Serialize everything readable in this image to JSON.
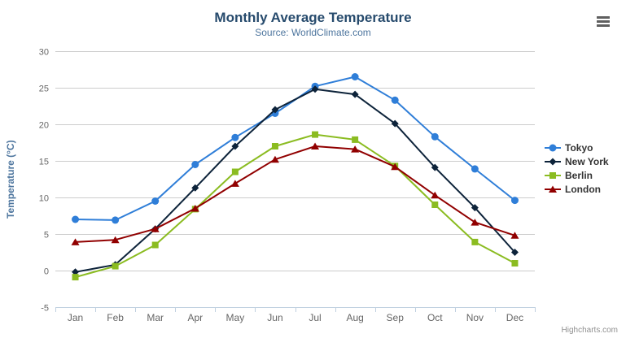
{
  "header": {
    "title": "Monthly Average Temperature",
    "subtitle": "Source: WorldClimate.com"
  },
  "toolbar": {
    "context_menu_icon": "hamburger-icon"
  },
  "chart_data": {
    "type": "line",
    "categories": [
      "Jan",
      "Feb",
      "Mar",
      "Apr",
      "May",
      "Jun",
      "Jul",
      "Aug",
      "Sep",
      "Oct",
      "Nov",
      "Dec"
    ],
    "series": [
      {
        "name": "Tokyo",
        "color": "#2f7ed8",
        "marker": "circle",
        "values": [
          7.0,
          6.9,
          9.5,
          14.5,
          18.2,
          21.5,
          25.2,
          26.5,
          23.3,
          18.3,
          13.9,
          9.6
        ]
      },
      {
        "name": "New York",
        "color": "#0d233a",
        "marker": "diamond",
        "values": [
          -0.2,
          0.8,
          5.7,
          11.3,
          17.0,
          22.0,
          24.8,
          24.1,
          20.1,
          14.1,
          8.6,
          2.5
        ]
      },
      {
        "name": "Berlin",
        "color": "#8bbc21",
        "marker": "square",
        "values": [
          -0.9,
          0.6,
          3.5,
          8.4,
          13.5,
          17.0,
          18.6,
          17.9,
          14.3,
          9.0,
          3.9,
          1.0
        ]
      },
      {
        "name": "London",
        "color": "#910000",
        "marker": "triangle",
        "values": [
          3.9,
          4.2,
          5.7,
          8.5,
          11.9,
          15.2,
          17.0,
          16.6,
          14.2,
          10.3,
          6.6,
          4.8
        ]
      }
    ],
    "title": "Monthly Average Temperature",
    "subtitle": "Source: WorldClimate.com",
    "xlabel": "",
    "ylabel": "Temperature (°C)",
    "ylim": [
      -5,
      30
    ],
    "ytick_step": 5,
    "grid": true,
    "legend_position": "right"
  },
  "style_colors": {
    "title": "#274b6d",
    "subtitle": "#4d759e",
    "axis_title": "#4d759e",
    "tick_label": "#666666",
    "grid_line": "#cccccc",
    "axis_line": "#c0d0e0",
    "legend_text": "#333333",
    "credits_text": "#909090"
  },
  "credits": {
    "label": "Highcharts.com"
  }
}
